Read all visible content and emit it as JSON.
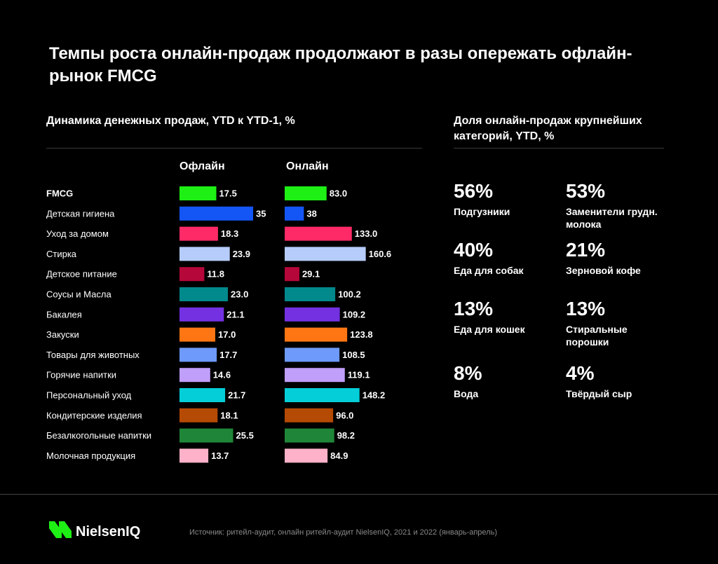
{
  "title": "Темпы роста онлайн-продаж продолжают в разы опережать офлайн-рынок FMCG",
  "left_subtitle": "Динамика денежных продаж, YTD к YTD-1, %",
  "right_subtitle": "Доля онлайн-продаж крупнейших категорий, YTD, %",
  "chart_data": {
    "type": "bar",
    "orientation": "horizontal",
    "categories": [
      "FMCG",
      "Детская гигиена",
      "Уход за домом",
      "Стирка",
      "Детское питание",
      "Соусы и Масла",
      "Бакалея",
      "Закуски",
      "Товары для животных",
      "Горячие напитки",
      "Персональный уход",
      "Кондитерские изделия",
      "Безалкогольные напитки",
      "Молочная продукция"
    ],
    "series": [
      {
        "name": "Офлайн",
        "values": [
          17.5,
          35,
          18.3,
          23.9,
          11.8,
          23.0,
          21.1,
          17.0,
          17.7,
          14.6,
          21.7,
          18.1,
          25.5,
          13.7
        ],
        "labels": [
          "17.5",
          "35",
          "18.3",
          "23.9",
          "11.8",
          "23.0",
          "21.1",
          "17.0",
          "17.7",
          "14.6",
          "21.7",
          "18.1",
          "25.5",
          "13.7"
        ]
      },
      {
        "name": "Онлайн",
        "values": [
          83.0,
          38,
          133.0,
          160.6,
          29.1,
          100.2,
          109.2,
          123.8,
          108.5,
          119.1,
          148.2,
          96.0,
          98.2,
          84.9
        ],
        "labels": [
          "83.0",
          "38",
          "133.0",
          "160.6",
          "29.1",
          "100.2",
          "109.2",
          "123.8",
          "108.5",
          "119.1",
          "148.2",
          "96.0",
          "98.2",
          "84.9"
        ]
      }
    ],
    "colors": [
      "#1ef015",
      "#1456f5",
      "#fd2a67",
      "#b6cdfc",
      "#b5073a",
      "#02898c",
      "#7331e1",
      "#fd7613",
      "#6d9afb",
      "#c09ffa",
      "#04cfd9",
      "#b54a04",
      "#1f8639",
      "#fdb2c9"
    ],
    "grid": false
  },
  "online_shares": [
    {
      "value": "56%",
      "label": "Подгузники"
    },
    {
      "value": "53%",
      "label": "Заменители грудн. молока"
    },
    {
      "value": "40%",
      "label": "Еда для собак"
    },
    {
      "value": "21%",
      "label": "Зерновой кофе"
    },
    {
      "value": "13%",
      "label": "Еда для кошек"
    },
    {
      "value": "13%",
      "label": "Стиральные порошки"
    },
    {
      "value": "8%",
      "label": "Вода"
    },
    {
      "value": "4%",
      "label": "Твёрдый сыр"
    }
  ],
  "footer": {
    "brand": "NielsenIQ",
    "logo_icon": "nielseniq-logo-icon",
    "logo_color": "#1ef015",
    "source": "Источник: ритейл-аудит, онлайн ритейл-аудит NielsenIQ, 2021 и 2022 (январь-апрель)"
  }
}
